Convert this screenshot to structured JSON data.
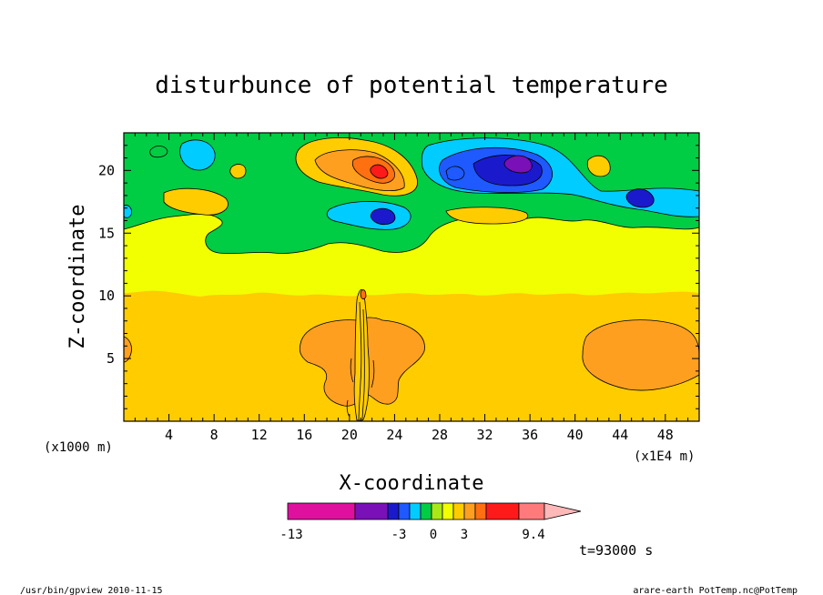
{
  "chart_data": {
    "type": "heatmap",
    "title": "disturbunce of potential temperature",
    "xlabel": "X-coordinate",
    "ylabel": "Z-coordinate",
    "x_unit_left": "(x1000 m)",
    "x_unit_right": "(x1E4 m)",
    "xlim": [
      0,
      51
    ],
    "ylim": [
      0,
      23
    ],
    "xticks": [
      4,
      8,
      12,
      16,
      20,
      24,
      28,
      32,
      36,
      40,
      44,
      48
    ],
    "yticks": [
      5,
      10,
      15,
      20
    ],
    "colorbar": {
      "labels": [
        "-13",
        "-3",
        "0",
        "3",
        "9.4"
      ],
      "colors": [
        "#e0109e",
        "#7a10b8",
        "#1a1acc",
        "#1e5aff",
        "#00ccff",
        "#00cc44",
        "#a8e818",
        "#f2ff00",
        "#ffcc00",
        "#ff9f20",
        "#ff7010",
        "#ff1a1a",
        "#ff7b7b",
        "#ffb8b8"
      ]
    }
  },
  "time_label": "t=93000 s",
  "footer": {
    "left": "/usr/bin/gpview  2010-11-15",
    "right": "arare-earth_PotTemp.nc@PotTemp"
  }
}
